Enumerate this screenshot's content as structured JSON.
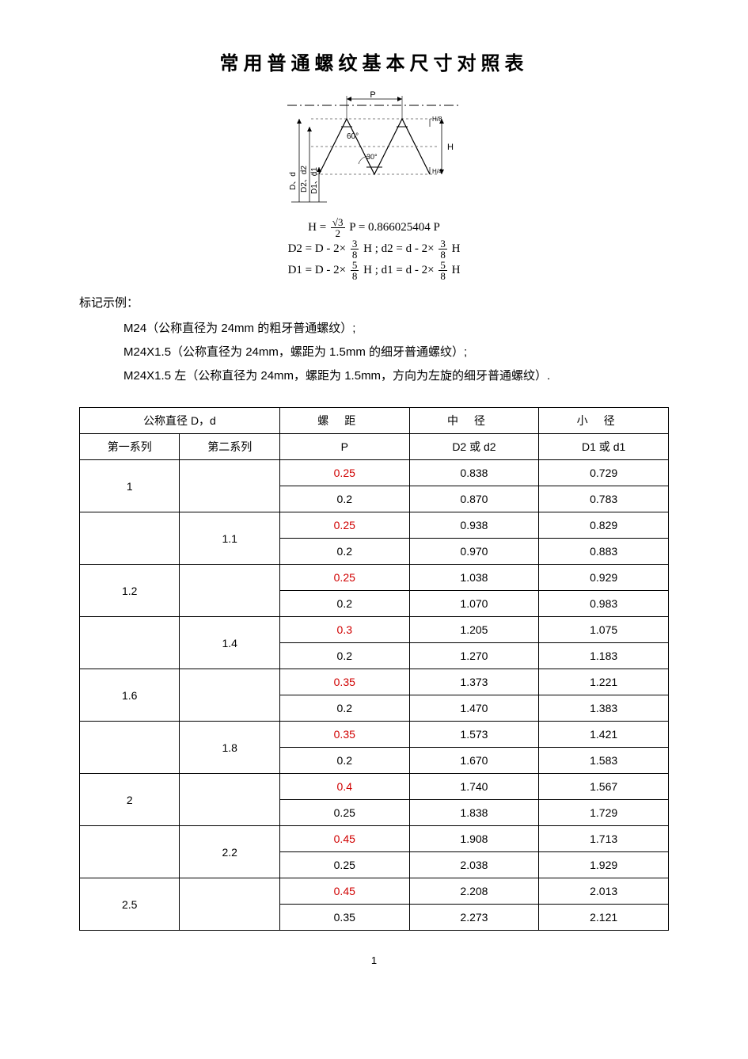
{
  "title": "常用普通螺纹基本尺寸对照表",
  "diagram": {
    "label_P": "P",
    "label_H": "H",
    "label_H8": "H/8",
    "label_H4": "H/4",
    "angle_60": "60°",
    "angle_30": "30°",
    "axis_D": "D、d",
    "axis_D2": "D2、d2",
    "axis_D1": "D1、d1"
  },
  "formulas": {
    "line1_left": "H =",
    "line1_frac_num": "√3",
    "line1_frac_den": "2",
    "line1_right": " P = 0.866025404 P",
    "line2_a_left": "D2 = D - 2×",
    "line2_a_num": "3",
    "line2_a_den": "8",
    "line2_a_right": " H ;",
    "line2_b_left": "   d2 = d - 2×",
    "line2_b_num": "3",
    "line2_b_den": "8",
    "line2_b_right": " H",
    "line3_a_left": "D1 = D - 2×",
    "line3_a_num": "5",
    "line3_a_den": "8",
    "line3_a_right": " H ;",
    "line3_b_left": "   d1 = d - 2×",
    "line3_b_num": "5",
    "line3_b_den": "8",
    "line3_b_right": " H"
  },
  "examples_label": "标记示例：",
  "examples": {
    "e1": "M24（公称直径为 24mm 的粗牙普通螺纹）;",
    "e2": "M24X1.5（公称直径为 24mm，螺距为 1.5mm 的细牙普通螺纹）;",
    "e3": "M24X1.5 左（公称直径为 24mm，螺距为 1.5mm，方向为左旋的细牙普通螺纹）."
  },
  "table": {
    "header": {
      "nominal": "公称直径 D，d",
      "series1": "第一系列",
      "series2": "第二系列",
      "pitch": "螺距",
      "p_sub": "P",
      "mid": "中径",
      "mid_sub": "D2 或 d2",
      "minor": "小径",
      "minor_sub": "D1 或 d1"
    },
    "groups": [
      {
        "s1": "1",
        "s2": "",
        "rows": [
          {
            "p": "0.25",
            "red": true,
            "d2": "0.838",
            "d1": "0.729"
          },
          {
            "p": "0.2",
            "red": false,
            "d2": "0.870",
            "d1": "0.783"
          }
        ]
      },
      {
        "s1": "",
        "s2": "1.1",
        "rows": [
          {
            "p": "0.25",
            "red": true,
            "d2": "0.938",
            "d1": "0.829"
          },
          {
            "p": "0.2",
            "red": false,
            "d2": "0.970",
            "d1": "0.883"
          }
        ]
      },
      {
        "s1": "1.2",
        "s2": "",
        "rows": [
          {
            "p": "0.25",
            "red": true,
            "d2": "1.038",
            "d1": "0.929"
          },
          {
            "p": "0.2",
            "red": false,
            "d2": "1.070",
            "d1": "0.983"
          }
        ]
      },
      {
        "s1": "",
        "s2": "1.4",
        "rows": [
          {
            "p": "0.3",
            "red": true,
            "d2": "1.205",
            "d1": "1.075"
          },
          {
            "p": "0.2",
            "red": false,
            "d2": "1.270",
            "d1": "1.183"
          }
        ]
      },
      {
        "s1": "1.6",
        "s2": "",
        "rows": [
          {
            "p": "0.35",
            "red": true,
            "d2": "1.373",
            "d1": "1.221"
          },
          {
            "p": "0.2",
            "red": false,
            "d2": "1.470",
            "d1": "1.383"
          }
        ]
      },
      {
        "s1": "",
        "s2": "1.8",
        "rows": [
          {
            "p": "0.35",
            "red": true,
            "d2": "1.573",
            "d1": "1.421"
          },
          {
            "p": "0.2",
            "red": false,
            "d2": "1.670",
            "d1": "1.583"
          }
        ]
      },
      {
        "s1": "2",
        "s2": "",
        "rows": [
          {
            "p": "0.4",
            "red": true,
            "d2": "1.740",
            "d1": "1.567"
          },
          {
            "p": "0.25",
            "red": false,
            "d2": "1.838",
            "d1": "1.729"
          }
        ]
      },
      {
        "s1": "",
        "s2": "2.2",
        "rows": [
          {
            "p": "0.45",
            "red": true,
            "d2": "1.908",
            "d1": "1.713"
          },
          {
            "p": "0.25",
            "red": false,
            "d2": "2.038",
            "d1": "1.929"
          }
        ]
      },
      {
        "s1": "2.5",
        "s2": "",
        "rows": [
          {
            "p": "0.45",
            "red": true,
            "d2": "2.208",
            "d1": "2.013"
          },
          {
            "p": "0.35",
            "red": false,
            "d2": "2.273",
            "d1": "2.121"
          }
        ]
      }
    ]
  },
  "page_number": "1"
}
